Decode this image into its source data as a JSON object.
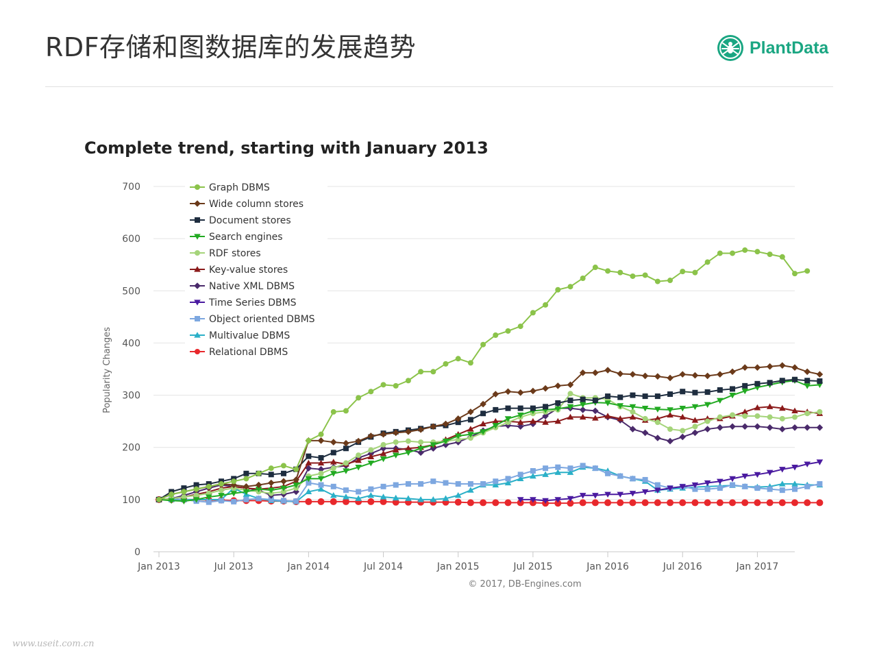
{
  "slide": {
    "title": "RDF存储和图数据库的发展趋势",
    "logo_text": "PlantData",
    "logo_icon": "spider-circle-icon",
    "brand_color": "#1aa682",
    "watermark": "www.useit.com.cn"
  },
  "chart_data": {
    "type": "line",
    "title": "Complete trend, starting with January 2013",
    "ylabel": "Popularity Changes",
    "credit": "© 2017, DB-Engines.com",
    "ylim": [
      0,
      700
    ],
    "yticks": [
      0,
      100,
      200,
      300,
      400,
      500,
      600,
      700
    ],
    "xlim": [
      0,
      51
    ],
    "xticks": [
      {
        "label": "Jan 2013",
        "x": 0
      },
      {
        "label": "Jul 2013",
        "x": 6
      },
      {
        "label": "Jan 2014",
        "x": 12
      },
      {
        "label": "Jul 2014",
        "x": 18
      },
      {
        "label": "Jan 2015",
        "x": 24
      },
      {
        "label": "Jul 2015",
        "x": 30
      },
      {
        "label": "Jan 2016",
        "x": 36
      },
      {
        "label": "Jul 2016",
        "x": 42
      },
      {
        "label": "Jan 2017",
        "x": 48
      }
    ],
    "grid": true,
    "legend_position": "top-left",
    "series": [
      {
        "name": "Graph DBMS",
        "color": "#8bc34a",
        "marker": "circle",
        "start": 0,
        "values": [
          100,
          110,
          115,
          120,
          125,
          130,
          135,
          140,
          150,
          160,
          165,
          158,
          213,
          225,
          268,
          270,
          295,
          307,
          320,
          318,
          328,
          345,
          345,
          360,
          370,
          362,
          397,
          415,
          423,
          432,
          458,
          473,
          502,
          508,
          524,
          545,
          538,
          535,
          528,
          530,
          518,
          520,
          537,
          535,
          555,
          572,
          572,
          578,
          575,
          570,
          565,
          533,
          538
        ]
      },
      {
        "name": "Wide column stores",
        "color": "#6b3a1a",
        "marker": "diamond",
        "start": 0,
        "values": [
          100,
          110,
          115,
          120,
          125,
          130,
          128,
          125,
          128,
          132,
          135,
          138,
          213,
          213,
          210,
          208,
          212,
          222,
          225,
          228,
          230,
          234,
          240,
          245,
          255,
          268,
          283,
          302,
          307,
          305,
          308,
          313,
          318,
          320,
          343,
          343,
          348,
          341,
          340,
          337,
          336,
          333,
          340,
          338,
          337,
          340,
          345,
          353,
          353,
          355,
          357,
          353,
          345,
          340
        ]
      },
      {
        "name": "Document stores",
        "color": "#1e2d3f",
        "marker": "square",
        "start": 0,
        "values": [
          100,
          115,
          122,
          128,
          130,
          135,
          140,
          150,
          150,
          148,
          150,
          158,
          183,
          180,
          190,
          198,
          210,
          220,
          227,
          230,
          233,
          236,
          240,
          242,
          248,
          253,
          265,
          272,
          275,
          275,
          275,
          278,
          285,
          290,
          292,
          290,
          298,
          296,
          300,
          298,
          298,
          302,
          307,
          305,
          306,
          310,
          312,
          318,
          322,
          324,
          328,
          330,
          328,
          327
        ]
      },
      {
        "name": "Search engines",
        "color": "#22aa22",
        "marker": "triangle-down",
        "start": 0,
        "values": [
          100,
          98,
          97,
          100,
          105,
          108,
          112,
          115,
          120,
          118,
          122,
          128,
          140,
          140,
          150,
          155,
          162,
          170,
          178,
          185,
          190,
          198,
          205,
          212,
          222,
          225,
          230,
          242,
          255,
          262,
          270,
          272,
          274,
          278,
          282,
          286,
          285,
          280,
          278,
          275,
          273,
          272,
          275,
          278,
          282,
          290,
          300,
          308,
          315,
          320,
          325,
          328,
          318,
          320
        ]
      },
      {
        "name": "RDF stores",
        "color": "#a5d47a",
        "marker": "circle",
        "start": 0,
        "values": [
          100,
          102,
          105,
          108,
          112,
          118,
          122,
          118,
          115,
          112,
          115,
          122,
          145,
          150,
          160,
          170,
          185,
          195,
          205,
          210,
          212,
          210,
          210,
          212,
          215,
          218,
          228,
          238,
          248,
          258,
          265,
          268,
          272,
          303,
          295,
          295,
          292,
          278,
          268,
          255,
          248,
          235,
          232,
          240,
          250,
          258,
          262,
          260,
          260,
          258,
          255,
          258,
          265,
          268
        ]
      },
      {
        "name": "Key-value stores",
        "color": "#8b1a1a",
        "marker": "triangle-up",
        "start": 0,
        "values": [
          100,
          102,
          105,
          110,
          115,
          122,
          125,
          122,
          120,
          122,
          125,
          135,
          170,
          170,
          172,
          168,
          175,
          182,
          188,
          195,
          198,
          200,
          205,
          215,
          225,
          235,
          245,
          250,
          250,
          248,
          250,
          248,
          250,
          258,
          258,
          256,
          260,
          255,
          258,
          252,
          255,
          262,
          258,
          252,
          255,
          255,
          260,
          268,
          276,
          278,
          275,
          270,
          268,
          265
        ]
      },
      {
        "name": "Native XML DBMS",
        "color": "#4a2a6b",
        "marker": "diamond",
        "start": 0,
        "values": [
          100,
          102,
          108,
          115,
          122,
          128,
          125,
          122,
          118,
          108,
          110,
          115,
          160,
          158,
          162,
          165,
          180,
          188,
          198,
          198,
          196,
          190,
          198,
          205,
          210,
          220,
          232,
          240,
          242,
          240,
          245,
          260,
          275,
          275,
          272,
          270,
          258,
          252,
          235,
          228,
          218,
          212,
          220,
          228,
          235,
          238,
          240,
          240,
          240,
          238,
          235,
          238,
          238,
          238
        ]
      },
      {
        "name": "Time Series DBMS",
        "color": "#4a1aa0",
        "marker": "triangle-down",
        "start": 29,
        "values": [
          100,
          100,
          98,
          100,
          102,
          108,
          108,
          110,
          110,
          112,
          115,
          118,
          122,
          125,
          128,
          132,
          135,
          140,
          145,
          148,
          152,
          158,
          162,
          168,
          172
        ]
      },
      {
        "name": "Object oriented DBMS",
        "color": "#7da7e0",
        "marker": "square",
        "start": 0,
        "values": [
          100,
          102,
          100,
          97,
          95,
          98,
          96,
          100,
          102,
          100,
          98,
          97,
          132,
          128,
          125,
          118,
          115,
          120,
          125,
          128,
          130,
          130,
          135,
          132,
          130,
          130,
          130,
          135,
          140,
          148,
          155,
          160,
          162,
          160,
          165,
          160,
          150,
          145,
          140,
          138,
          128,
          122,
          125,
          120,
          120,
          122,
          128,
          125,
          122,
          120,
          118,
          120,
          125,
          130
        ]
      },
      {
        "name": "Multivalue DBMS",
        "color": "#2bb0c8",
        "marker": "triangle-up",
        "start": 0,
        "values": [
          100,
          100,
          100,
          100,
          100,
          100,
          122,
          110,
          102,
          98,
          97,
          96,
          115,
          120,
          108,
          105,
          102,
          108,
          105,
          103,
          102,
          100,
          100,
          102,
          108,
          118,
          128,
          128,
          132,
          140,
          145,
          148,
          152,
          152,
          162,
          160,
          155,
          145,
          140,
          135,
          118,
          120,
          122,
          124,
          125,
          126,
          127,
          125,
          124,
          125,
          130,
          130,
          128,
          128
        ]
      },
      {
        "name": "Relational DBMS",
        "color": "#e8282c",
        "marker": "circle",
        "start": 0,
        "values": [
          100,
          100,
          100,
          100,
          99,
          99,
          98,
          98,
          98,
          97,
          97,
          96,
          96,
          96,
          96,
          96,
          96,
          96,
          96,
          95,
          95,
          95,
          95,
          95,
          95,
          94,
          94,
          94,
          94,
          94,
          94,
          93,
          93,
          93,
          94,
          94,
          94,
          94,
          94,
          94,
          94,
          94,
          94,
          94,
          94,
          94,
          94,
          94,
          94,
          94,
          94,
          94,
          94,
          94
        ]
      }
    ]
  }
}
